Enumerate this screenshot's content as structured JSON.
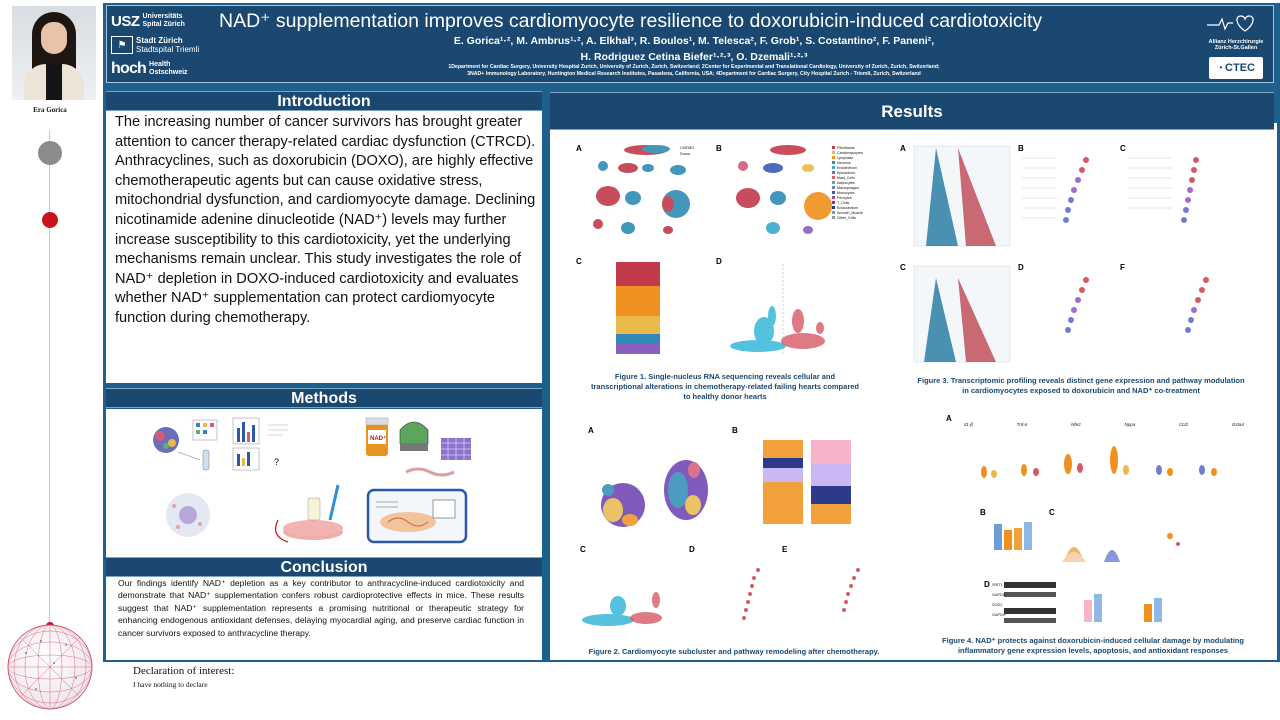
{
  "presenter": {
    "name": "Era Gorica"
  },
  "logos": {
    "usz": "USZ",
    "usz_line1": "Universitäts",
    "usz_line2": "Spital Zürich",
    "stadt_line1": "Stadt Zürich",
    "stadt_line2": "Stadtspital Triemli",
    "hoch": "hoch",
    "hoch_line1": "Health",
    "hoch_line2": "Ostschweiz",
    "right_line1": "Allianz Herzchirurgie",
    "right_line2": "Zürich-St.Gallen",
    "ctec": "CTEC"
  },
  "header": {
    "title": "NAD⁺ supplementation improves cardiomyocyte resilience to doxorubicin-induced cardiotoxicity",
    "authors_line1": "E. Gorica¹·², M. Ambrus¹·², A. Elkhal³, R. Boulos¹, M. Telesca², F. Grob¹, S. Costantino², F. Paneni²,",
    "authors_line2": "H. Rodriguez Cetina Biefer¹·²·³, O. Dzemali¹·²·³",
    "affiliations_line1": "1Department for Cardiac Surgery, University Hospital Zurich, University of Zurich, Zurich, Switzerland; 2Center for Experimental and Translational Cardiology, University of Zurich, Zurich, Switzerland;",
    "affiliations_line2": "3NAD+ Immunology Laboratory, Huntington Medical Research Institutes, Pasadena, California, USA; 4Department for Cardiac Surgery, City Hospital Zurich - Triemli, Zurich, Switzerland"
  },
  "sections": {
    "introduction_title": "Introduction",
    "methods_title": "Methods",
    "conclusion_title": "Conclusion",
    "results_title": "Results"
  },
  "introduction": {
    "text": "The increasing number of cancer survivors has brought greater attention to cancer therapy-related cardiac dysfunction (CTRCD). Anthracyclines, such as doxorubicin (DOXO), are highly effective chemotherapeutic agents but can cause oxidative stress, mitochondrial dysfunction, and cardiomyocyte damage. Declining nicotinamide adenine dinucleotide (NAD⁺) levels may further increase susceptibility to this cardiotoxicity, yet the underlying mechanisms remain unclear. This study investigates the role of NAD⁺ depletion in DOXO-induced cardiotoxicity and evaluates whether NAD⁺ supplementation can protect cardiomyocyte function during chemotherapy."
  },
  "conclusion": {
    "text": "Our findings identify NAD⁺ depletion as a key contributor to anthracycline-induced cardiotoxicity and demonstrate that NAD⁺ supplementation confers robust cardioprotective effects in mice. These results suggest that NAD⁺ supplementation represents a promising nutritional or therapeutic strategy for enhancing endogenous antioxidant defenses, delaying myocardial aging, and preserve cardiac function in cancer survivors exposed to anthracycline therapy."
  },
  "methods": {
    "question_mark": "?",
    "nad_label": "NAD⁺"
  },
  "figures": {
    "fig1_caption": "Figure 1. Single-nucleus RNA sequencing reveals cellular and transcriptional alterations in chemotherapy-related failing hearts compared to  healthy donor hearts",
    "fig2_caption": "Figure 2. Cardiomyocyte subcluster and pathway remodeling after chemotherapy.",
    "fig3_caption": "Figure 3. Transcriptomic profiling reveals distinct gene expression and pathway modulation in cardiomyocytes exposed to doxorubicin and NAD⁺ co-treatment",
    "fig4_caption": "Figure 4. NAD⁺ protects against doxorubicin-induced cellular damage by modulating inflammatory gene expression levels, apoptosis, and antioxidant responses",
    "letters": {
      "a": "A",
      "b": "B",
      "c": "C",
      "d": "D",
      "e": "E",
      "f": "F"
    },
    "fig1_legend": [
      "Fibroblasts",
      "Cardiomyocytes",
      "Lymphatic",
      "Neurons",
      "Endothelium",
      "Epicardium",
      "Mast_Cells",
      "Adipocytes",
      "Macrophages",
      "Monocytes",
      "Pericytes",
      "T_Cells",
      "Endocardium",
      "Smooth_Muscle",
      "Other_Cells"
    ],
    "fig1_group_labels": [
      "CHEMO",
      "Donor"
    ],
    "fig4_genes": [
      "Il1-β",
      "Tnf-α",
      "Nfe2",
      "Nppa",
      "Ccl2",
      "Gsta4"
    ],
    "fig4_blot_labels": [
      "SIRT1",
      "GAPDH",
      "SOD2",
      "GAPDH"
    ]
  },
  "colors": {
    "poster_blue": "#1d5f8d",
    "header_navy": "#1a4870",
    "accent_red": "#c8141e"
  },
  "declaration": {
    "title": "Declaration of interest:",
    "text": "I have nothing to declare"
  }
}
